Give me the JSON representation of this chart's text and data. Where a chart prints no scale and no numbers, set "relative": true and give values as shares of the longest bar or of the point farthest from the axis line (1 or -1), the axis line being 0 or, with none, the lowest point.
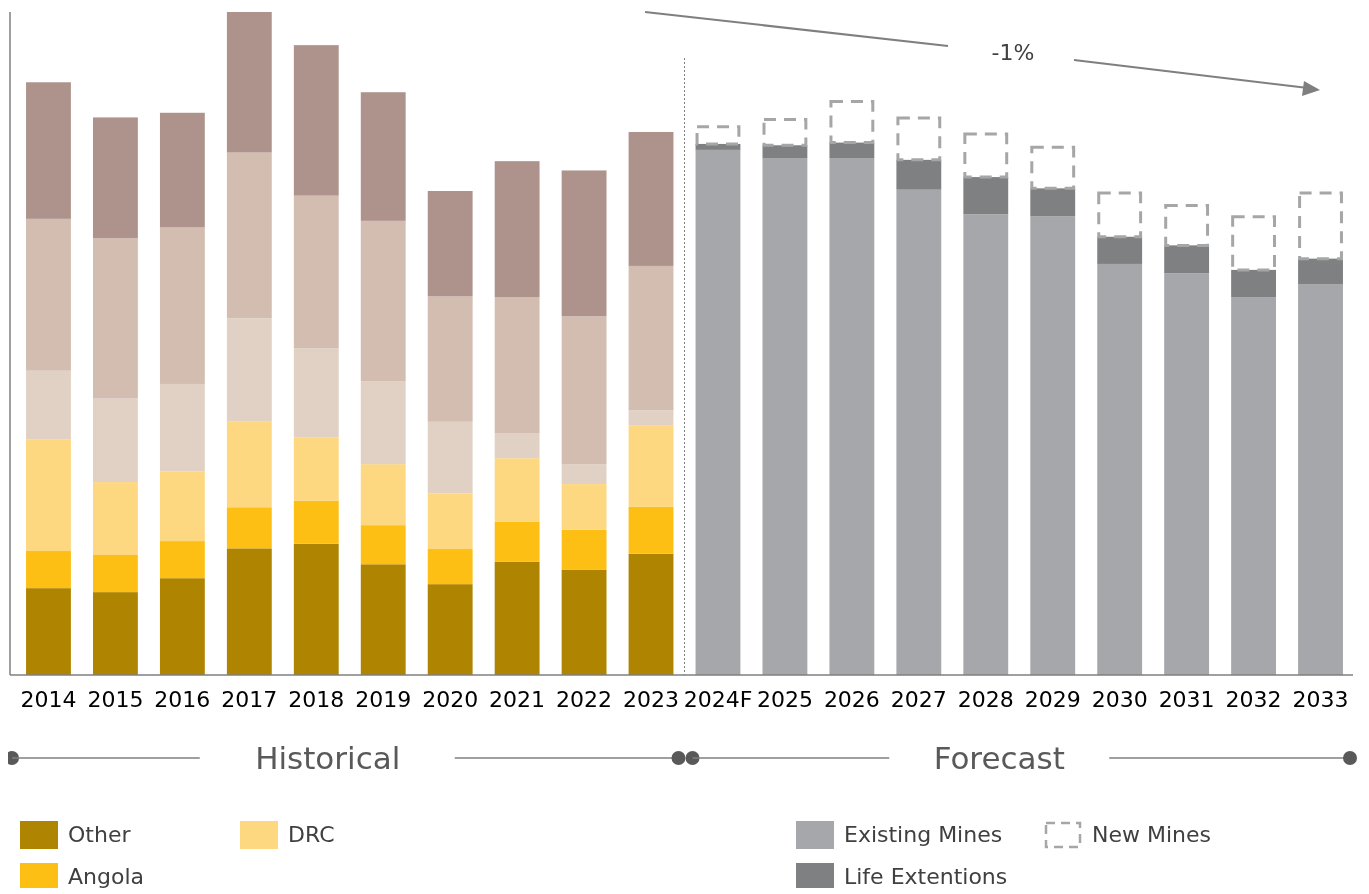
{
  "chart_data": {
    "type": "bar",
    "stacked": true,
    "relative": true,
    "categories": [
      "2014",
      "2015",
      "2016",
      "2017",
      "2018",
      "2019",
      "2020",
      "2021",
      "2022",
      "2023",
      "2024F",
      "2025",
      "2026",
      "2027",
      "2028",
      "2029",
      "2030",
      "2031",
      "2032",
      "2033"
    ],
    "series": [
      {
        "name": "Other",
        "color": "#ae8401",
        "values": [
          0.131,
          0.125,
          0.146,
          0.191,
          0.198,
          0.167,
          0.137,
          0.171,
          0.159,
          0.183,
          null,
          null,
          null,
          null,
          null,
          null,
          null,
          null,
          null,
          null
        ]
      },
      {
        "name": "Angola",
        "color": "#fdbf14",
        "values": [
          0.056,
          0.056,
          0.056,
          0.062,
          0.065,
          0.059,
          0.053,
          0.06,
          0.06,
          0.071,
          null,
          null,
          null,
          null,
          null,
          null,
          null,
          null,
          null,
          null
        ]
      },
      {
        "name": "DRC",
        "color": "#fed880",
        "values": [
          0.168,
          0.11,
          0.105,
          0.129,
          0.095,
          0.092,
          0.084,
          0.096,
          0.069,
          0.122,
          null,
          null,
          null,
          null,
          null,
          null,
          null,
          null,
          null,
          null
        ]
      },
      {
        "color": "#e0d1c4",
        "values": [
          0.104,
          0.126,
          0.132,
          0.156,
          0.135,
          0.125,
          0.108,
          0.038,
          0.03,
          0.023,
          null,
          null,
          null,
          null,
          null,
          null,
          null,
          null,
          null,
          null
        ]
      },
      {
        "color": "#d3bcb0",
        "values": [
          0.229,
          0.242,
          0.236,
          0.25,
          0.23,
          0.242,
          0.189,
          0.205,
          0.223,
          0.218,
          null,
          null,
          null,
          null,
          null,
          null,
          null,
          null,
          null,
          null
        ]
      },
      {
        "color": "#ae938c",
        "values": [
          0.206,
          0.182,
          0.173,
          0.212,
          0.227,
          0.194,
          0.159,
          0.205,
          0.22,
          0.202,
          null,
          null,
          null,
          null,
          null,
          null,
          null,
          null,
          null,
          null
        ]
      },
      {
        "name": "Existing Mines",
        "color": "#a6a7ab",
        "values": [
          null,
          null,
          null,
          null,
          null,
          null,
          null,
          null,
          null,
          null,
          0.792,
          0.779,
          0.779,
          0.732,
          0.695,
          0.692,
          0.62,
          0.606,
          0.57,
          0.589
        ]
      },
      {
        "name": "Life Extentions",
        "color": "#7f8082",
        "values": [
          null,
          null,
          null,
          null,
          null,
          null,
          null,
          null,
          null,
          null,
          0.009,
          0.02,
          0.024,
          0.045,
          0.056,
          0.042,
          0.041,
          0.042,
          0.041,
          0.039
        ]
      },
      {
        "name": "New Mines",
        "color": "#a6a6a6",
        "line_style": "dashed",
        "values": [
          null,
          null,
          null,
          null,
          null,
          null,
          null,
          null,
          null,
          null,
          0.026,
          0.039,
          0.062,
          0.063,
          0.065,
          0.062,
          0.066,
          0.06,
          0.08,
          0.099
        ]
      }
    ],
    "annotations": [
      "-1%",
      "Historical",
      "Forecast"
    ],
    "legend": "bottom"
  }
}
